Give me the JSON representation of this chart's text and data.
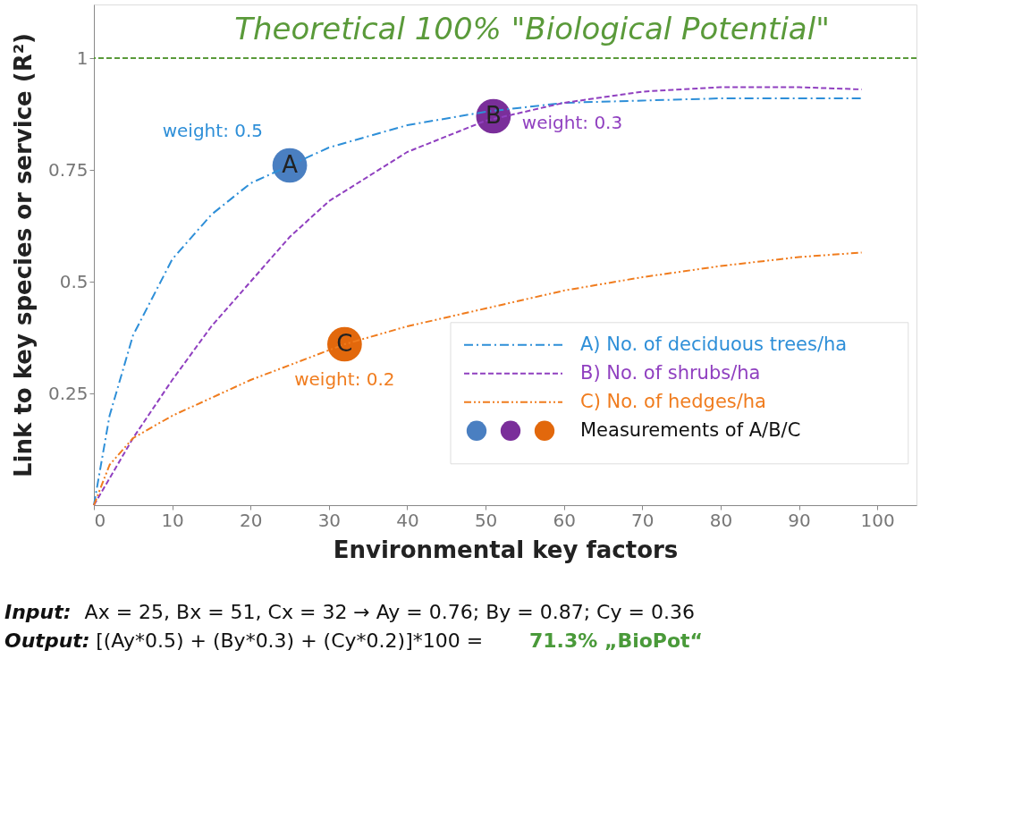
{
  "chart_data": {
    "type": "line",
    "xlabel": "Environmental key factors",
    "ylabel": "Link to key species or service (R²)",
    "xlim": [
      0,
      105
    ],
    "ylim": [
      0,
      1.12
    ],
    "xticks": [
      0,
      10,
      20,
      30,
      40,
      50,
      60,
      70,
      80,
      90,
      100
    ],
    "yticks": [
      0.25,
      0.5,
      0.75,
      1
    ],
    "grid": false,
    "legend": "bottom right",
    "series": [
      {
        "name": "A) No. of deciduous trees/ha",
        "color": "#2e8fd8",
        "line_style": "dashdot",
        "x": [
          0,
          2,
          5,
          10,
          15,
          20,
          25,
          30,
          40,
          50,
          60,
          70,
          80,
          90,
          98
        ],
        "values": [
          0,
          0.2,
          0.38,
          0.55,
          0.65,
          0.72,
          0.76,
          0.8,
          0.85,
          0.88,
          0.9,
          0.905,
          0.91,
          0.91,
          0.91
        ]
      },
      {
        "name": "B) No. of shrubs/ha",
        "color": "#9040c0",
        "line_style": "dashed",
        "x": [
          0,
          5,
          10,
          15,
          20,
          25,
          30,
          40,
          50,
          60,
          70,
          80,
          90,
          98
        ],
        "values": [
          0,
          0.15,
          0.28,
          0.4,
          0.5,
          0.6,
          0.68,
          0.79,
          0.86,
          0.9,
          0.925,
          0.935,
          0.935,
          0.93
        ]
      },
      {
        "name": "C) No. of hedges/ha",
        "color": "#f07c1e",
        "line_style": "dashdotdot",
        "x": [
          0,
          2,
          5,
          10,
          20,
          32,
          40,
          50,
          60,
          70,
          80,
          90,
          98
        ],
        "values": [
          0,
          0.09,
          0.15,
          0.2,
          0.28,
          0.36,
          0.4,
          0.44,
          0.48,
          0.51,
          0.535,
          0.555,
          0.565
        ]
      },
      {
        "name": "Measurements of A/B/C",
        "type": "scatter",
        "marker": "circle",
        "colors": [
          "#4a7fc1",
          "#7a2e9a",
          "#e2680c"
        ],
        "x": [
          25,
          51,
          32
        ],
        "values": [
          0.76,
          0.87,
          0.36
        ]
      }
    ],
    "ref_lines": [
      {
        "axis": "y",
        "value": 1,
        "label": "Theoretical 100% \"Biological Potential\"",
        "color": "#5a9a3a",
        "line_style": "dashed"
      }
    ],
    "annotations": [
      {
        "text": "A",
        "x": 25,
        "y": 0.76
      },
      {
        "text": "B",
        "x": 51,
        "y": 0.87
      },
      {
        "text": "C",
        "x": 32,
        "y": 0.36
      },
      "weight: 0.5",
      "weight: 0.3",
      "weight: 0.2",
      "Input:",
      "Ax = 25, Bx = 51, Cx = 32 → Ay = 0.76; By = 0.87; Cy = 0.36",
      "Output:",
      "[(Ay*0.5) + (By*0.3) + (Cy*0.2)]*100 =",
      "71.3% „BioPot“"
    ]
  }
}
